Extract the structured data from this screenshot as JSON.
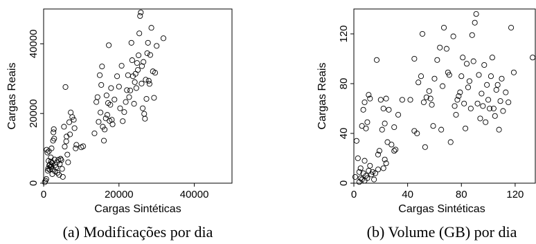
{
  "chart_data": [
    {
      "type": "scatter",
      "caption": "(a) Modificações por dia",
      "xlabel": "Cargas Sintéticas",
      "ylabel": "Cargas Reais",
      "xlim": [
        0,
        50000
      ],
      "ylim": [
        0,
        50000
      ],
      "xticks": [
        0,
        20000,
        40000
      ],
      "yticks": [
        0,
        20000,
        40000
      ],
      "points": [
        [
          300,
          300
        ],
        [
          500,
          700
        ],
        [
          700,
          1200
        ],
        [
          800,
          9600
        ],
        [
          1000,
          8800
        ],
        [
          1100,
          3600
        ],
        [
          1200,
          4200
        ],
        [
          1300,
          6400
        ],
        [
          1400,
          9200
        ],
        [
          1500,
          5100
        ],
        [
          1600,
          3900
        ],
        [
          1700,
          5400
        ],
        [
          1800,
          4600
        ],
        [
          1900,
          7400
        ],
        [
          2000,
          6200
        ],
        [
          2100,
          4800
        ],
        [
          2100,
          10000
        ],
        [
          2200,
          5800
        ],
        [
          2300,
          2600
        ],
        [
          2400,
          4000
        ],
        [
          2500,
          12200
        ],
        [
          2600,
          14600
        ],
        [
          2700,
          15500
        ],
        [
          2800,
          12800
        ],
        [
          2900,
          6800
        ],
        [
          3000,
          3400
        ],
        [
          3100,
          5200
        ],
        [
          3300,
          4500
        ],
        [
          3500,
          6000
        ],
        [
          3700,
          3000
        ],
        [
          3900,
          6700
        ],
        [
          4100,
          2400
        ],
        [
          4300,
          5500
        ],
        [
          4500,
          7000
        ],
        [
          4700,
          6600
        ],
        [
          4900,
          4100
        ],
        [
          5100,
          1800
        ],
        [
          5400,
          16200
        ],
        [
          5600,
          10500
        ],
        [
          5800,
          27600
        ],
        [
          6000,
          12000
        ],
        [
          6100,
          13400
        ],
        [
          6300,
          8200
        ],
        [
          6500,
          6000
        ],
        [
          6800,
          17500
        ],
        [
          7000,
          14000
        ],
        [
          7200,
          20300
        ],
        [
          7600,
          19000
        ],
        [
          8000,
          18200
        ],
        [
          8200,
          15800
        ],
        [
          8500,
          10000
        ],
        [
          8700,
          11000
        ],
        [
          10000,
          10300
        ],
        [
          10500,
          10600
        ],
        [
          13500,
          14300
        ],
        [
          14000,
          23300
        ],
        [
          14300,
          24700
        ],
        [
          14600,
          17600
        ],
        [
          14900,
          31000
        ],
        [
          15100,
          20300
        ],
        [
          15300,
          28200
        ],
        [
          15500,
          33500
        ],
        [
          15700,
          16200
        ],
        [
          16000,
          12200
        ],
        [
          16200,
          15400
        ],
        [
          16500,
          18600
        ],
        [
          16700,
          25200
        ],
        [
          16900,
          19600
        ],
        [
          17100,
          23000
        ],
        [
          17300,
          39600
        ],
        [
          17500,
          17900
        ],
        [
          17700,
          22500
        ],
        [
          17900,
          27300
        ],
        [
          18100,
          18200
        ],
        [
          18300,
          16900
        ],
        [
          18800,
          24000
        ],
        [
          19500,
          30700
        ],
        [
          20000,
          27700
        ],
        [
          20300,
          21500
        ],
        [
          20700,
          33700
        ],
        [
          21000,
          17800
        ],
        [
          21400,
          20400
        ],
        [
          21800,
          23300
        ],
        [
          22100,
          26700
        ],
        [
          22400,
          31000
        ],
        [
          22700,
          24700
        ],
        [
          23000,
          26600
        ],
        [
          23300,
          40300
        ],
        [
          23500,
          35300
        ],
        [
          23700,
          30700
        ],
        [
          24000,
          22800
        ],
        [
          24200,
          29000
        ],
        [
          24400,
          31400
        ],
        [
          24600,
          27300
        ],
        [
          24800,
          34500
        ],
        [
          25000,
          32500
        ],
        [
          25200,
          36700
        ],
        [
          25400,
          43000
        ],
        [
          25600,
          48000
        ],
        [
          25800,
          49000
        ],
        [
          26000,
          28600
        ],
        [
          26100,
          33600
        ],
        [
          26300,
          21500
        ],
        [
          26500,
          34800
        ],
        [
          26700,
          19900
        ],
        [
          26900,
          18500
        ],
        [
          27100,
          29700
        ],
        [
          27300,
          24200
        ],
        [
          27500,
          37300
        ],
        [
          27700,
          40300
        ],
        [
          27900,
          29400
        ],
        [
          28100,
          28500
        ],
        [
          28300,
          36800
        ],
        [
          28600,
          44600
        ],
        [
          29000,
          32100
        ],
        [
          29300,
          24500
        ],
        [
          29600,
          31700
        ],
        [
          30000,
          39400
        ],
        [
          31800,
          41600
        ]
      ]
    },
    {
      "type": "scatter",
      "caption": "(b) Volume (GB) por dia",
      "xlabel": "Cargas Sintéticas",
      "ylabel": "Cargas Reais",
      "xlim": [
        0,
        135
      ],
      "ylim": [
        0,
        140
      ],
      "xticks": [
        0,
        40,
        80,
        120
      ],
      "yticks": [
        0,
        40,
        80,
        120
      ],
      "points": [
        [
          1,
          5
        ],
        [
          2,
          34
        ],
        [
          3,
          20
        ],
        [
          4,
          9
        ],
        [
          4,
          1
        ],
        [
          5,
          4
        ],
        [
          5,
          12
        ],
        [
          6,
          3
        ],
        [
          6,
          46
        ],
        [
          7,
          8
        ],
        [
          7,
          59
        ],
        [
          8,
          2
        ],
        [
          8,
          65
        ],
        [
          8,
          18
        ],
        [
          9,
          6
        ],
        [
          9,
          44
        ],
        [
          10,
          4
        ],
        [
          10,
          49
        ],
        [
          11,
          10
        ],
        [
          11,
          71
        ],
        [
          12,
          14
        ],
        [
          12,
          68
        ],
        [
          13,
          7
        ],
        [
          14,
          9
        ],
        [
          15,
          3
        ],
        [
          16,
          8
        ],
        [
          17,
          99
        ],
        [
          18,
          11
        ],
        [
          18,
          23
        ],
        [
          19,
          26
        ],
        [
          20,
          67
        ],
        [
          21,
          43
        ],
        [
          22,
          60
        ],
        [
          22,
          12
        ],
        [
          23,
          48
        ],
        [
          23,
          19
        ],
        [
          24,
          16
        ],
        [
          24,
          68
        ],
        [
          25,
          33
        ],
        [
          26,
          59
        ],
        [
          28,
          31
        ],
        [
          30,
          26
        ],
        [
          30,
          45
        ],
        [
          31,
          27
        ],
        [
          33,
          55
        ],
        [
          36,
          67
        ],
        [
          42,
          67
        ],
        [
          45,
          100
        ],
        [
          45,
          42
        ],
        [
          47,
          40
        ],
        [
          48,
          81
        ],
        [
          50,
          86
        ],
        [
          51,
          120
        ],
        [
          52,
          65
        ],
        [
          53,
          29
        ],
        [
          54,
          69
        ],
        [
          56,
          74
        ],
        [
          57,
          68
        ],
        [
          58,
          63
        ],
        [
          59,
          46
        ],
        [
          60,
          84
        ],
        [
          62,
          99
        ],
        [
          64,
          109
        ],
        [
          65,
          43
        ],
        [
          66,
          78
        ],
        [
          67,
          125
        ],
        [
          69,
          108
        ],
        [
          70,
          89
        ],
        [
          71,
          87
        ],
        [
          72,
          33
        ],
        [
          74,
          118
        ],
        [
          75,
          62
        ],
        [
          76,
          55
        ],
        [
          77,
          67
        ],
        [
          78,
          70
        ],
        [
          79,
          73
        ],
        [
          80,
          86
        ],
        [
          81,
          101
        ],
        [
          82,
          64
        ],
        [
          83,
          44
        ],
        [
          84,
          96
        ],
        [
          85,
          77
        ],
        [
          86,
          82
        ],
        [
          87,
          60
        ],
        [
          88,
          119
        ],
        [
          89,
          98
        ],
        [
          90,
          129
        ],
        [
          91,
          136
        ],
        [
          92,
          64
        ],
        [
          93,
          87
        ],
        [
          94,
          52
        ],
        [
          95,
          72
        ],
        [
          96,
          62
        ],
        [
          97,
          95
        ],
        [
          98,
          49
        ],
        [
          99,
          79
        ],
        [
          100,
          67
        ],
        [
          101,
          60
        ],
        [
          102,
          86
        ],
        [
          103,
          101
        ],
        [
          104,
          60
        ],
        [
          105,
          54
        ],
        [
          106,
          75
        ],
        [
          107,
          79
        ],
        [
          108,
          43
        ],
        [
          109,
          66
        ],
        [
          110,
          84
        ],
        [
          111,
          58
        ],
        [
          113,
          73
        ],
        [
          115,
          65
        ],
        [
          117,
          125
        ],
        [
          119,
          89
        ],
        [
          133,
          101
        ]
      ]
    }
  ]
}
